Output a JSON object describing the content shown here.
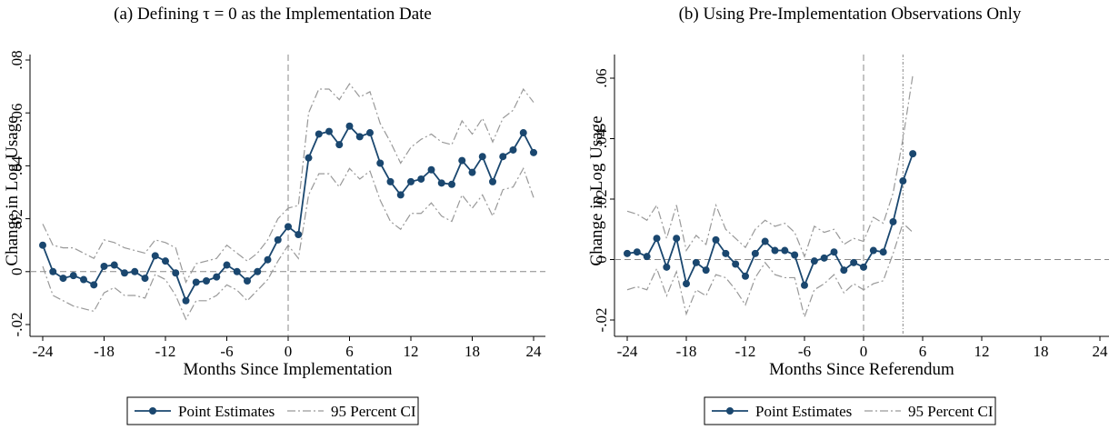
{
  "chart_data": [
    {
      "type": "line",
      "title": "(a) Defining τ = 0 as the Implementation Date",
      "xlabel": "Months Since Implementation",
      "ylabel": "Change in Log Usage",
      "x": [
        -24,
        -23,
        -22,
        -21,
        -20,
        -19,
        -18,
        -17,
        -16,
        -15,
        -14,
        -13,
        -12,
        -11,
        -10,
        -9,
        -8,
        -7,
        -6,
        -5,
        -4,
        -3,
        -2,
        -1,
        0,
        1,
        2,
        3,
        4,
        5,
        6,
        7,
        8,
        9,
        10,
        11,
        12,
        13,
        14,
        15,
        16,
        17,
        18,
        19,
        20,
        21,
        22,
        23,
        24
      ],
      "series": [
        {
          "name": "Point Estimates",
          "color": "#1a476f",
          "values": [
            0.01,
            0.0,
            -0.0025,
            -0.0015,
            -0.003,
            -0.005,
            0.002,
            0.0025,
            -0.0005,
            0,
            -0.0025,
            0.006,
            0.004,
            -0.0005,
            -0.011,
            -0.004,
            -0.0035,
            -0.002,
            0.0025,
            0,
            -0.0035,
            0,
            0.0045,
            0.012,
            0.017,
            0.014,
            0.043,
            0.052,
            0.053,
            0.048,
            0.055,
            0.051,
            0.0525,
            0.041,
            0.034,
            0.029,
            0.034,
            0.035,
            0.0385,
            0.0335,
            0.033,
            0.042,
            0.0375,
            0.0435,
            0.034,
            0.0435,
            0.046,
            0.0525,
            0.045
          ]
        },
        {
          "name": "95 Percent CI",
          "color": "#999999",
          "lower": [
            0.002,
            -0.009,
            -0.011,
            -0.013,
            -0.014,
            -0.015,
            -0.008,
            -0.006,
            -0.009,
            -0.009,
            -0.01,
            -0.001,
            -0.003,
            -0.009,
            -0.018,
            -0.011,
            -0.011,
            -0.009,
            -0.005,
            -0.007,
            -0.011,
            -0.007,
            -0.003,
            0.004,
            0.01,
            0.005,
            0.029,
            0.037,
            0.037,
            0.032,
            0.039,
            0.035,
            0.038,
            0.027,
            0.019,
            0.016,
            0.022,
            0.022,
            0.026,
            0.021,
            0.019,
            0.029,
            0.024,
            0.029,
            0.021,
            0.031,
            0.032,
            0.039,
            0.028
          ],
          "upper": [
            0.018,
            0.01,
            0.009,
            0.009,
            0.007,
            0.005,
            0.012,
            0.011,
            0.009,
            0.008,
            0.007,
            0.012,
            0.011,
            0.009,
            -0.004,
            0.003,
            0.004,
            0.005,
            0.01,
            0.007,
            0.004,
            0.007,
            0.012,
            0.02,
            0.024,
            0.025,
            0.06,
            0.069,
            0.069,
            0.065,
            0.071,
            0.066,
            0.068,
            0.056,
            0.049,
            0.041,
            0.047,
            0.05,
            0.052,
            0.049,
            0.048,
            0.057,
            0.052,
            0.058,
            0.049,
            0.058,
            0.061,
            0.069,
            0.064
          ]
        }
      ],
      "xlim": [
        -24,
        24
      ],
      "xticks": [
        -24,
        -18,
        -12,
        -6,
        0,
        6,
        12,
        18,
        24
      ],
      "ylim": [
        -0.02,
        0.08
      ],
      "yticks": [
        {
          "value": -0.02,
          "label": "-.02"
        },
        0,
        {
          "value": 0.02,
          "label": ".02"
        },
        {
          "value": 0.04,
          "label": ".04"
        },
        {
          "value": 0.06,
          "label": ".06"
        },
        {
          "value": 0.08,
          "label": ".08"
        }
      ],
      "vlines": [
        0
      ],
      "hline": 0
    },
    {
      "type": "line",
      "title": "(b) Using Pre-Implementation Observations Only",
      "xlabel": "Months Since Referendum",
      "ylabel": "Change in Log Usage",
      "x": [
        -24,
        -23,
        -22,
        -21,
        -20,
        -19,
        -18,
        -17,
        -16,
        -15,
        -14,
        -13,
        -12,
        -11,
        -10,
        -9,
        -8,
        -7,
        -6,
        -5,
        -4,
        -3,
        -2,
        -1,
        0,
        1,
        2,
        3,
        4,
        5
      ],
      "series": [
        {
          "name": "Point Estimates",
          "color": "#1a476f",
          "values": [
            0.002,
            0.0025,
            0.001,
            0.007,
            -0.0025,
            0.007,
            -0.008,
            -0.001,
            -0.0035,
            0.0065,
            0.002,
            -0.0015,
            -0.0055,
            0.002,
            0.006,
            0.003,
            0.003,
            0.0015,
            -0.0085,
            -0.0005,
            0.0005,
            0.0025,
            -0.0035,
            -0.001,
            -0.0025,
            0.003,
            0.0025,
            0.0125,
            0.026,
            0.035
          ]
        },
        {
          "name": "95 Percent CI",
          "color": "#999999",
          "lower": [
            -0.01,
            -0.009,
            -0.01,
            -0.003,
            -0.012,
            -0.004,
            -0.018,
            -0.01,
            -0.012,
            -0.005,
            -0.006,
            -0.01,
            -0.015,
            -0.006,
            -0.001,
            -0.005,
            -0.006,
            -0.006,
            -0.019,
            -0.01,
            -0.008,
            -0.005,
            -0.011,
            -0.008,
            -0.01,
            -0.008,
            -0.007,
            0.002,
            0.012,
            0.009
          ],
          "upper": [
            0.016,
            0.015,
            0.013,
            0.018,
            0.007,
            0.018,
            0.003,
            0.008,
            0.005,
            0.018,
            0.01,
            0.007,
            0.004,
            0.01,
            0.013,
            0.011,
            0.012,
            0.009,
            0.001,
            0.011,
            0.009,
            0.01,
            0.005,
            0.007,
            0.006,
            0.014,
            0.012,
            0.022,
            0.04,
            0.061
          ]
        }
      ],
      "xlim": [
        -24,
        24
      ],
      "xticks": [
        -24,
        -18,
        -12,
        -6,
        0,
        6,
        12,
        18,
        24
      ],
      "ylim": [
        -0.02,
        0.06
      ],
      "yticks": [
        {
          "value": -0.02,
          "label": "-.02"
        },
        0,
        {
          "value": 0.02,
          "label": ".02"
        },
        {
          "value": 0.04,
          "label": ".04"
        },
        {
          "value": 0.06,
          "label": ".06"
        }
      ],
      "vlines": [
        0,
        4
      ],
      "hline": 0
    }
  ]
}
